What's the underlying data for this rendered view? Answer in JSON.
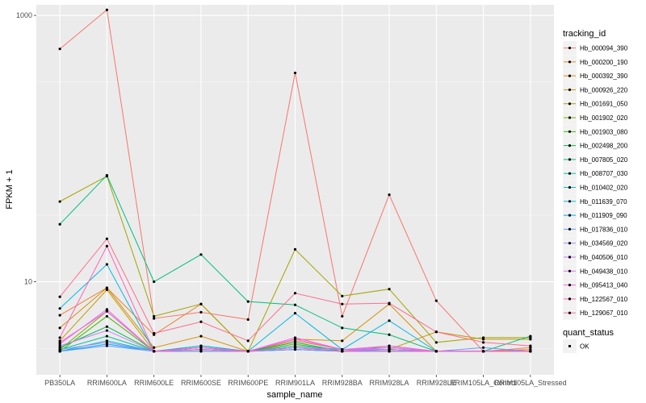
{
  "chart_data": {
    "type": "line",
    "xlabel": "sample_name",
    "ylabel": "FPKM + 1",
    "y_scale": "log10",
    "ylim": [
      2.0,
      1200
    ],
    "y_ticks": [
      10,
      1000
    ],
    "y_tick_labels": [
      "10",
      "1000"
    ],
    "grid": true,
    "categories": [
      "PB350LA",
      "RRIM600LA",
      "RRIM600LE",
      "RRIM600SE",
      "RRIM600PE",
      "RRIM901LA",
      "RRIM928BA",
      "RRIM928LA",
      "RRIM928LE",
      "RRIM105LA_Control",
      "RRIM105LA_Stressed"
    ],
    "category_labels": [
      "PB350LA",
      "RRIM600LA",
      "RRIM600LE",
      "RRIM600SE",
      "RRIM600PE",
      "RRIM901LA",
      "RRIM928BA",
      "RRIM928LA",
      "RRIM928LE",
      "RRIM105LA_Control",
      "RRIM105LA_Stressed"
    ],
    "legend": {
      "title": "tracking_id",
      "position": "right",
      "status_title": "quant_status",
      "status_items": [
        "OK"
      ]
    },
    "series": [
      {
        "name": "Hb_000094_390",
        "color": "#F8766D",
        "values": [
          560,
          1100,
          5.3,
          5.9,
          5.2,
          370,
          5.5,
          45,
          7.2,
          3.0,
          3.2
        ]
      },
      {
        "name": "Hb_000200_190",
        "color": "#EA8331",
        "values": [
          5.6,
          9.0,
          4.0,
          6.8,
          3.0,
          3.6,
          3.1,
          3.1,
          3.0,
          3.0,
          3.0
        ]
      },
      {
        "name": "Hb_000392_390",
        "color": "#D89000",
        "values": [
          4.5,
          9.0,
          3.2,
          3.9,
          3.0,
          3.7,
          3.6,
          6.8,
          3.0,
          3.0,
          3.1
        ]
      },
      {
        "name": "Hb_000926_220",
        "color": "#C09B00",
        "values": [
          3.6,
          8.7,
          3.0,
          3.1,
          3.0,
          3.2,
          3.1,
          3.1,
          4.2,
          3.7,
          3.7
        ]
      },
      {
        "name": "Hb_001691_050",
        "color": "#A3A500",
        "values": [
          40,
          62,
          5.5,
          6.8,
          3.0,
          17.5,
          7.8,
          8.8,
          3.5,
          3.8,
          3.8
        ]
      },
      {
        "name": "Hb_001902_020",
        "color": "#7CAE00",
        "values": [
          3.1,
          6.0,
          3.0,
          3.2,
          3.0,
          3.4,
          3.0,
          3.3,
          3.0,
          3.0,
          3.0
        ]
      },
      {
        "name": "Hb_001903_080",
        "color": "#39B600",
        "values": [
          3.0,
          5.5,
          3.0,
          3.0,
          3.0,
          3.2,
          3.0,
          3.0,
          3.0,
          3.0,
          3.0
        ]
      },
      {
        "name": "Hb_002498_200",
        "color": "#00BB4E",
        "values": [
          3.2,
          4.6,
          3.0,
          3.3,
          3.0,
          3.5,
          3.0,
          3.1,
          3.0,
          3.0,
          3.0
        ]
      },
      {
        "name": "Hb_007805_020",
        "color": "#00BF7D",
        "values": [
          27,
          63,
          10,
          16,
          7.1,
          6.7,
          4.5,
          4.0,
          3.0,
          3.0,
          3.9
        ]
      },
      {
        "name": "Hb_008707_030",
        "color": "#00C1A3",
        "values": [
          3.1,
          3.9,
          3.0,
          3.1,
          3.0,
          3.1,
          3.0,
          3.0,
          3.0,
          3.0,
          3.0
        ]
      },
      {
        "name": "Hb_010402_020",
        "color": "#00BFC4",
        "values": [
          3.0,
          3.6,
          3.0,
          3.2,
          3.0,
          3.3,
          3.1,
          3.1,
          3.0,
          3.0,
          3.0
        ]
      },
      {
        "name": "Hb_011639_070",
        "color": "#00B8E7",
        "values": [
          6.3,
          13.5,
          3.0,
          3.3,
          3.0,
          5.8,
          3.1,
          5.1,
          3.0,
          3.0,
          3.0
        ]
      },
      {
        "name": "Hb_011909_090",
        "color": "#00A9FF",
        "values": [
          3.0,
          3.4,
          3.0,
          3.1,
          3.0,
          3.1,
          3.0,
          3.0,
          3.0,
          3.0,
          3.0
        ]
      },
      {
        "name": "Hb_017836_010",
        "color": "#619CFF",
        "values": [
          3.0,
          3.3,
          3.0,
          3.0,
          3.0,
          3.1,
          3.0,
          3.1,
          3.0,
          3.2,
          3.0
        ]
      },
      {
        "name": "Hb_034569_020",
        "color": "#9F8CFF",
        "values": [
          3.1,
          3.5,
          3.0,
          3.1,
          3.0,
          3.2,
          3.1,
          3.1,
          3.0,
          3.0,
          3.0
        ]
      },
      {
        "name": "Hb_040506_010",
        "color": "#C77CFF",
        "values": [
          3.3,
          4.3,
          3.0,
          3.1,
          3.0,
          3.2,
          3.0,
          3.2,
          3.0,
          3.0,
          3.0
        ]
      },
      {
        "name": "Hb_049438_010",
        "color": "#E76BF3",
        "values": [
          3.4,
          6.2,
          3.0,
          3.2,
          3.0,
          3.8,
          3.1,
          3.3,
          3.0,
          3.0,
          3.0
        ]
      },
      {
        "name": "Hb_095413_040",
        "color": "#FA62DB",
        "values": [
          3.5,
          6.0,
          3.0,
          3.2,
          3.0,
          3.7,
          3.1,
          3.2,
          3.0,
          3.0,
          3.0
        ]
      },
      {
        "name": "Hb_122567_010",
        "color": "#FF62BC",
        "values": [
          3.8,
          18.5,
          3.0,
          3.1,
          3.0,
          3.2,
          3.0,
          3.0,
          3.0,
          3.0,
          3.0
        ]
      },
      {
        "name": "Hb_129067_010",
        "color": "#FF6C91",
        "values": [
          7.7,
          21,
          4.1,
          5.0,
          3.6,
          8.2,
          6.8,
          6.9,
          4.2,
          3.5,
          3.3
        ]
      }
    ]
  }
}
